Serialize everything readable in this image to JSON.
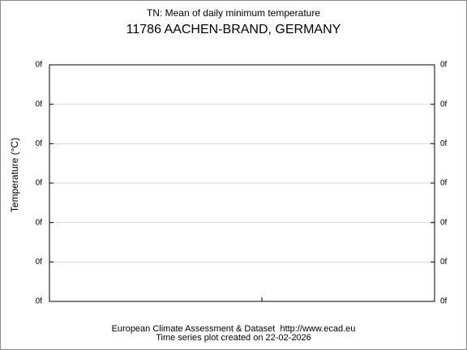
{
  "chart_data": {
    "type": "line",
    "title": "TN: Mean of daily minimum temperature",
    "subtitle": "11786 AACHEN-BRAND, GERMANY",
    "ylabel": "Temperature (°C)",
    "yticks": [
      "0f",
      "0f",
      "0f",
      "0f",
      "0f",
      "0f",
      "0f"
    ],
    "y2ticks": [
      "0f",
      "0f",
      "0f",
      "0f",
      "0f",
      "0f",
      "0f"
    ],
    "grid": true,
    "footer": [
      "European Climate Assessment & Dataset  http://www.ecad.eu",
      "Time series plot created on 22-02-2026"
    ]
  }
}
